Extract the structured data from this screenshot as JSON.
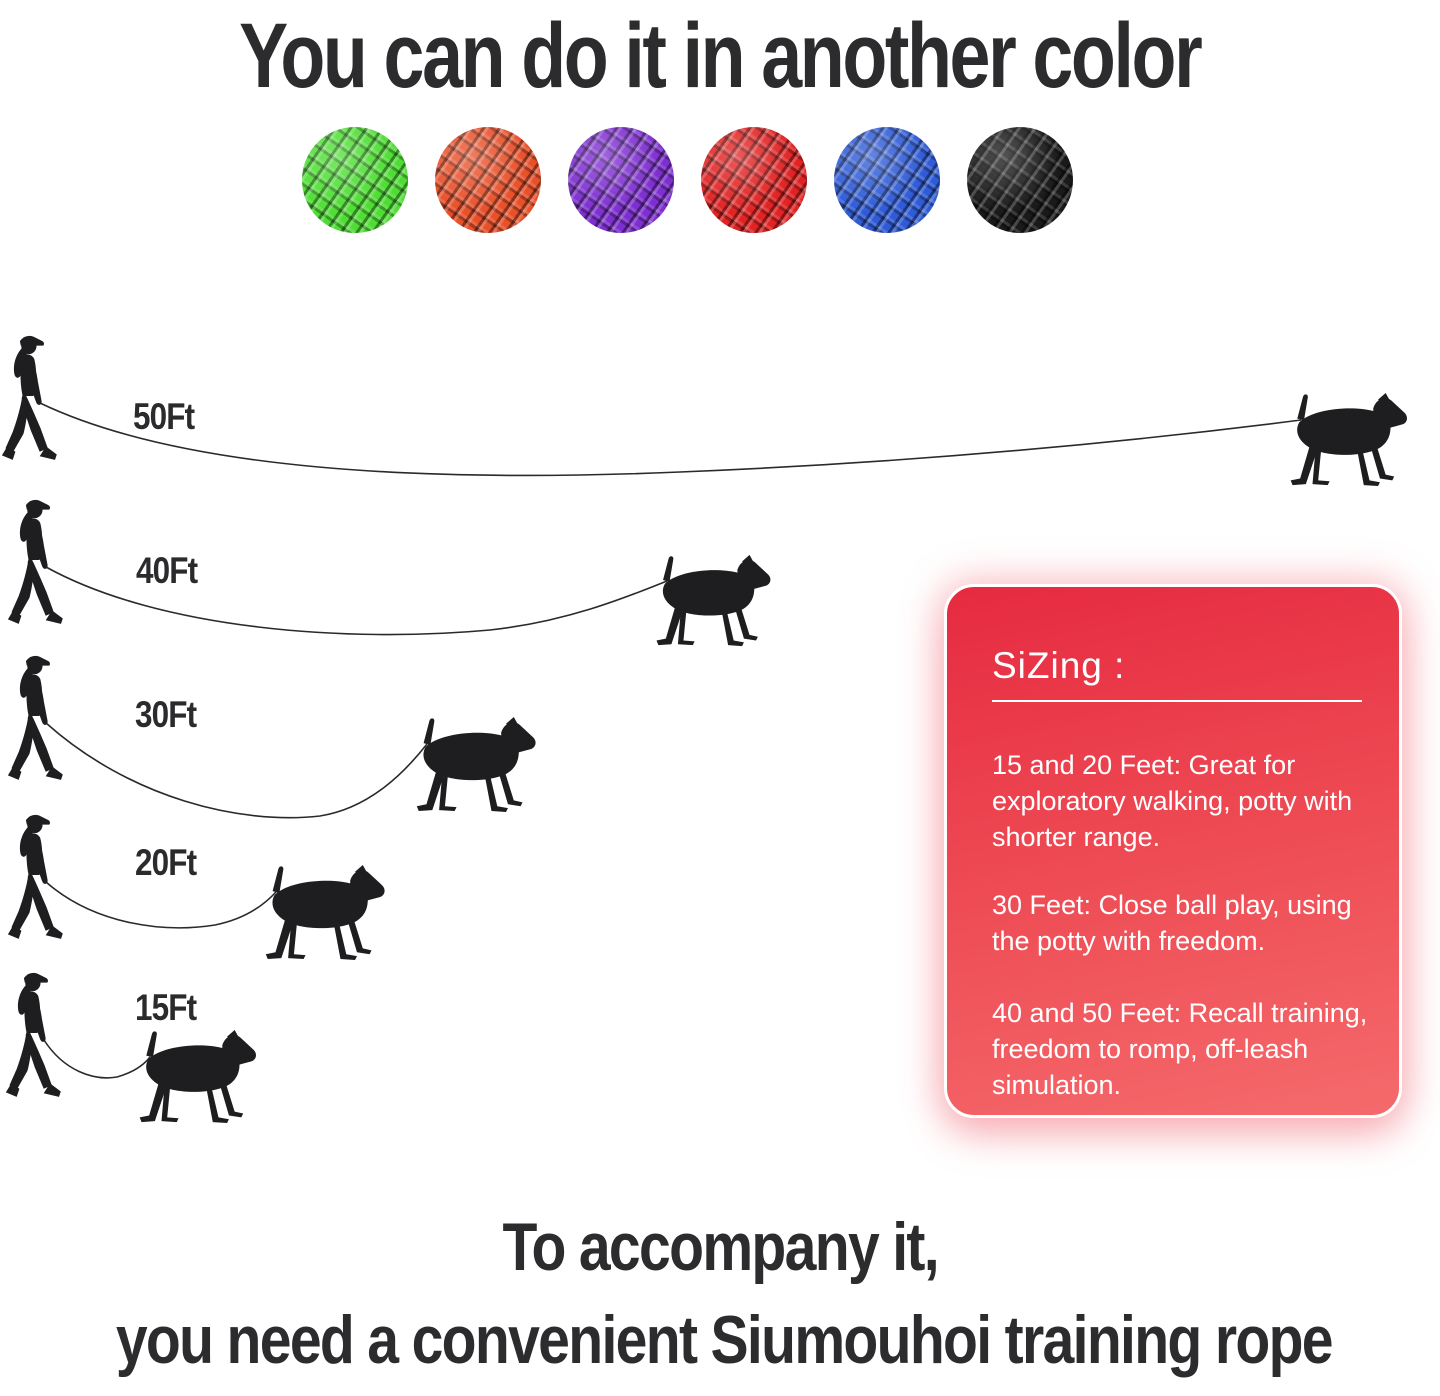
{
  "title": "You can do it in another color",
  "color_swatches": [
    {
      "name": "green",
      "hex": "#4fdd35"
    },
    {
      "name": "orange",
      "hex": "#e8502a"
    },
    {
      "name": "purple",
      "hex": "#7e2fd0"
    },
    {
      "name": "red",
      "hex": "#e12323"
    },
    {
      "name": "blue",
      "hex": "#2f5bd6"
    },
    {
      "name": "black",
      "hex": "#1a1a1a"
    }
  ],
  "leash_rows": [
    {
      "label": "50Ft"
    },
    {
      "label": "40Ft"
    },
    {
      "label": "30Ft"
    },
    {
      "label": "20Ft"
    },
    {
      "label": "15Ft"
    }
  ],
  "sizing_card": {
    "heading": "SiZing :",
    "paragraphs": [
      "15 and 20 Feet: Great for\nexploratory walking, potty with\nshorter range.",
      "30 Feet: Close ball play, using\nthe potty with freedom.",
      "40 and 50 Feet: Recall training,\nfreedom to romp, off-leash\nsimulation."
    ],
    "background_top": "#e62a40",
    "background_bottom": "#f46a6c",
    "text_color": "#ffffff"
  },
  "footer": {
    "line1": "To accompany it,",
    "line2": "you need a convenient Siumouhoi training rope"
  }
}
